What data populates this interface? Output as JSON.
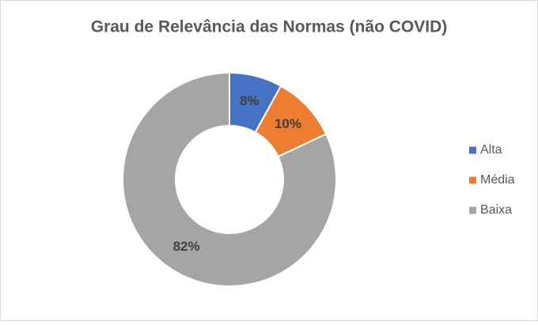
{
  "chart_data": {
    "type": "donut",
    "title": "Grau de Relevância das Normas (não COVID)",
    "series": [
      {
        "name": "Alta",
        "color": "#4472c4"
      },
      {
        "name": "Média",
        "color": "#ed7d31"
      },
      {
        "name": "Baixa",
        "color": "#a5a5a5"
      }
    ],
    "values": [
      8,
      10,
      82
    ],
    "value_labels": [
      "8%",
      "10%",
      "82%"
    ],
    "legend": "right"
  }
}
